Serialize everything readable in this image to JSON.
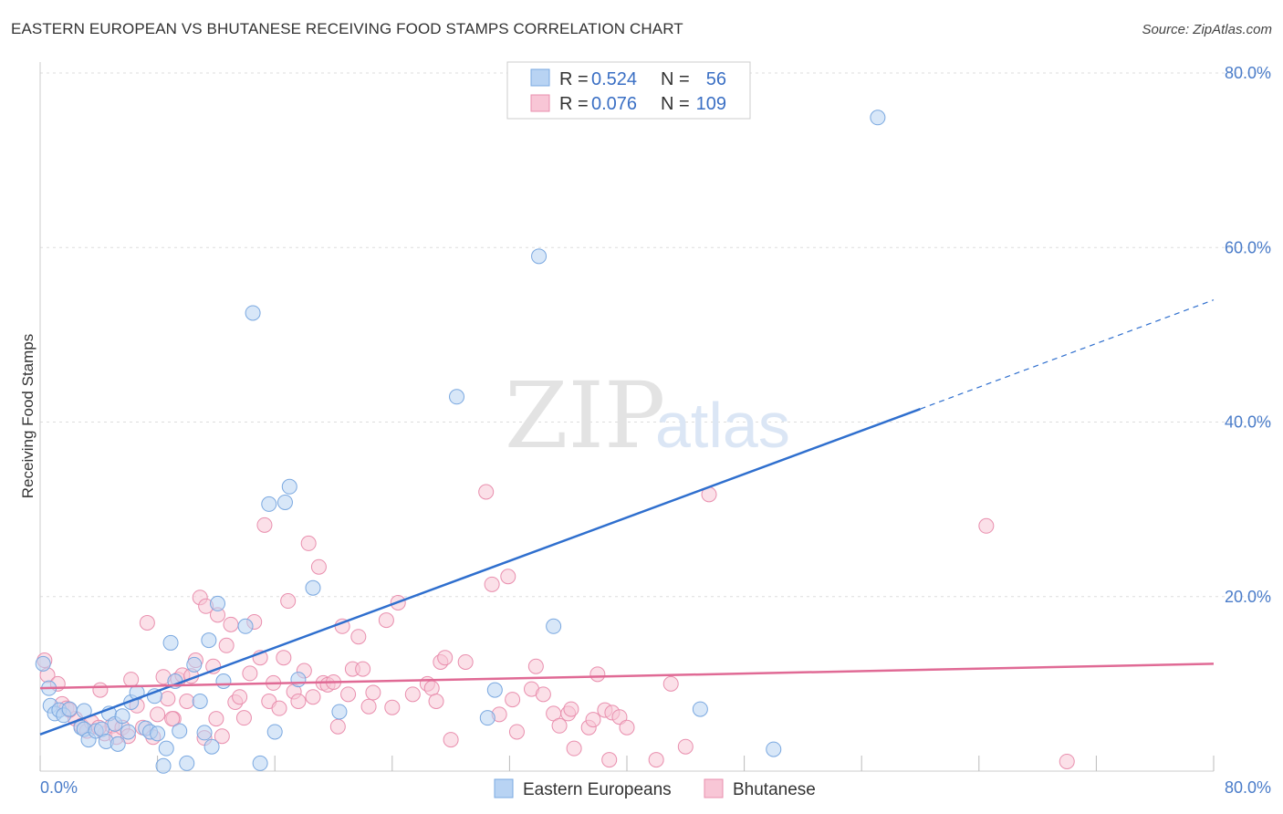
{
  "title": "EASTERN EUROPEAN VS BHUTANESE RECEIVING FOOD STAMPS CORRELATION CHART",
  "source": "Source: ZipAtlas.com",
  "watermark": {
    "zip": "ZIP",
    "atlas": "atlas"
  },
  "colors": {
    "blue_fill": "#b8d3f3",
    "blue_stroke": "#7aa8e0",
    "blue_line": "#2f6fce",
    "pink_fill": "#f8c6d6",
    "pink_stroke": "#e98fae",
    "pink_line": "#e06a95",
    "tick": "#4a7cc9",
    "grid": "#dddddd"
  },
  "legend": {
    "rows": [
      {
        "r_label": "R =",
        "r_value": "0.524",
        "n_label": "N =",
        "n_value": "56"
      },
      {
        "r_label": "R =",
        "r_value": "0.076",
        "n_label": "N =",
        "n_value": "109"
      }
    ]
  },
  "chart_data": {
    "type": "scatter",
    "title": "EASTERN EUROPEAN VS BHUTANESE RECEIVING FOOD STAMPS CORRELATION CHART",
    "xlabel": "",
    "ylabel": "Receiving Food Stamps",
    "xlim": [
      0,
      80
    ],
    "ylim": [
      0,
      80
    ],
    "x_tick_labels": [
      "0.0%",
      "80.0%"
    ],
    "y_tick_labels": [
      "20.0%",
      "40.0%",
      "60.0%",
      "80.0%"
    ],
    "y_ticks": [
      20,
      40,
      60,
      80
    ],
    "x_ticks": [
      0,
      8,
      16,
      24,
      32,
      40,
      48,
      56,
      64,
      72,
      80
    ],
    "grid": true,
    "legend_position": "top-center",
    "series": [
      {
        "name": "Eastern Europeans",
        "color": "#b8d3f3",
        "trend": {
          "x0": 0,
          "y0": 4.2,
          "x1": 60,
          "y1": 41.5,
          "dash_to_x": 80,
          "dash_to_y": 54
        },
        "points": [
          [
            0.2,
            12.3
          ],
          [
            0.6,
            9.5
          ],
          [
            0.7,
            7.5
          ],
          [
            1.0,
            6.6
          ],
          [
            1.3,
            7.0
          ],
          [
            1.6,
            6.4
          ],
          [
            2.0,
            7.1
          ],
          [
            2.8,
            5.0
          ],
          [
            3.0,
            4.8
          ],
          [
            3.3,
            3.6
          ],
          [
            3.8,
            4.6
          ],
          [
            4.2,
            4.8
          ],
          [
            4.5,
            3.4
          ],
          [
            4.7,
            6.6
          ],
          [
            5.1,
            5.4
          ],
          [
            5.3,
            3.1
          ],
          [
            5.6,
            6.3
          ],
          [
            6.2,
            7.9
          ],
          [
            6.6,
            9.0
          ],
          [
            7.2,
            4.9
          ],
          [
            7.5,
            4.5
          ],
          [
            7.8,
            8.6
          ],
          [
            8.0,
            4.3
          ],
          [
            8.4,
            0.6
          ],
          [
            8.6,
            2.6
          ],
          [
            8.9,
            14.7
          ],
          [
            9.2,
            10.3
          ],
          [
            9.5,
            4.6
          ],
          [
            10.0,
            0.9
          ],
          [
            10.5,
            12.2
          ],
          [
            10.9,
            8.0
          ],
          [
            11.2,
            4.4
          ],
          [
            11.5,
            15.0
          ],
          [
            11.7,
            2.8
          ],
          [
            12.1,
            19.2
          ],
          [
            12.5,
            10.3
          ],
          [
            14.0,
            16.6
          ],
          [
            14.5,
            52.5
          ],
          [
            15.0,
            0.9
          ],
          [
            15.6,
            30.6
          ],
          [
            16.0,
            4.5
          ],
          [
            16.7,
            30.8
          ],
          [
            17.0,
            32.6
          ],
          [
            17.6,
            10.5
          ],
          [
            18.6,
            21.0
          ],
          [
            20.4,
            6.8
          ],
          [
            28.4,
            42.9
          ],
          [
            30.5,
            6.1
          ],
          [
            31.0,
            9.3
          ],
          [
            34.0,
            59.0
          ],
          [
            35.0,
            16.6
          ],
          [
            45.0,
            7.1
          ],
          [
            50.0,
            2.5
          ],
          [
            57.1,
            74.9
          ],
          [
            6.0,
            4.5
          ],
          [
            3.0,
            6.9
          ]
        ]
      },
      {
        "name": "Bhutanese",
        "color": "#f8c6d6",
        "trend": {
          "x0": 0,
          "y0": 9.5,
          "x1": 80,
          "y1": 12.3
        },
        "points": [
          [
            0.3,
            12.7
          ],
          [
            0.5,
            11.0
          ],
          [
            1.2,
            10.0
          ],
          [
            1.5,
            7.7
          ],
          [
            1.8,
            7.2
          ],
          [
            2.4,
            6.0
          ],
          [
            2.8,
            5.2
          ],
          [
            3.2,
            4.6
          ],
          [
            3.5,
            5.6
          ],
          [
            4.1,
            9.3
          ],
          [
            4.4,
            4.3
          ],
          [
            4.9,
            5.2
          ],
          [
            5.2,
            3.9
          ],
          [
            5.6,
            5.0
          ],
          [
            6.2,
            10.5
          ],
          [
            6.6,
            7.5
          ],
          [
            7.0,
            5.0
          ],
          [
            7.3,
            17.0
          ],
          [
            7.7,
            3.9
          ],
          [
            8.0,
            6.5
          ],
          [
            8.4,
            10.8
          ],
          [
            8.7,
            8.3
          ],
          [
            9.1,
            6.0
          ],
          [
            9.4,
            10.5
          ],
          [
            9.7,
            11.0
          ],
          [
            10.0,
            8.0
          ],
          [
            10.3,
            10.9
          ],
          [
            10.6,
            12.7
          ],
          [
            10.9,
            19.9
          ],
          [
            11.2,
            3.8
          ],
          [
            11.3,
            18.9
          ],
          [
            11.8,
            12.0
          ],
          [
            12.1,
            17.9
          ],
          [
            12.4,
            4.0
          ],
          [
            12.7,
            14.4
          ],
          [
            13.0,
            16.8
          ],
          [
            13.3,
            7.9
          ],
          [
            13.6,
            8.5
          ],
          [
            13.9,
            6.1
          ],
          [
            14.3,
            11.2
          ],
          [
            14.6,
            17.1
          ],
          [
            15.0,
            13.0
          ],
          [
            15.3,
            28.2
          ],
          [
            15.6,
            8.0
          ],
          [
            15.9,
            10.1
          ],
          [
            16.3,
            7.2
          ],
          [
            16.6,
            13.0
          ],
          [
            16.9,
            19.5
          ],
          [
            17.3,
            9.1
          ],
          [
            17.6,
            8.0
          ],
          [
            18.0,
            11.5
          ],
          [
            18.3,
            26.1
          ],
          [
            18.6,
            8.5
          ],
          [
            19.0,
            23.4
          ],
          [
            19.3,
            10.1
          ],
          [
            19.6,
            9.9
          ],
          [
            20.0,
            10.2
          ],
          [
            20.3,
            5.1
          ],
          [
            20.6,
            16.6
          ],
          [
            21.0,
            8.8
          ],
          [
            21.3,
            11.7
          ],
          [
            21.7,
            15.4
          ],
          [
            22.0,
            11.7
          ],
          [
            22.4,
            7.4
          ],
          [
            22.7,
            9.0
          ],
          [
            23.6,
            17.3
          ],
          [
            24.0,
            7.3
          ],
          [
            24.4,
            19.3
          ],
          [
            25.4,
            8.8
          ],
          [
            26.4,
            10.0
          ],
          [
            26.7,
            9.5
          ],
          [
            27.0,
            8.0
          ],
          [
            27.3,
            12.5
          ],
          [
            27.6,
            13.0
          ],
          [
            28.0,
            3.6
          ],
          [
            29.0,
            12.5
          ],
          [
            30.4,
            32.0
          ],
          [
            30.8,
            21.4
          ],
          [
            31.3,
            6.5
          ],
          [
            31.9,
            22.3
          ],
          [
            32.2,
            8.2
          ],
          [
            32.5,
            4.5
          ],
          [
            33.5,
            9.4
          ],
          [
            33.8,
            12.0
          ],
          [
            34.3,
            8.8
          ],
          [
            35.0,
            6.6
          ],
          [
            35.4,
            5.2
          ],
          [
            36.0,
            6.6
          ],
          [
            36.2,
            7.1
          ],
          [
            36.4,
            2.6
          ],
          [
            37.4,
            5.0
          ],
          [
            37.7,
            5.9
          ],
          [
            38.0,
            11.1
          ],
          [
            38.5,
            7.0
          ],
          [
            38.8,
            1.3
          ],
          [
            39.0,
            6.7
          ],
          [
            39.5,
            6.2
          ],
          [
            40.0,
            5.0
          ],
          [
            42.0,
            1.3
          ],
          [
            43.0,
            10.0
          ],
          [
            44.0,
            2.8
          ],
          [
            45.6,
            31.7
          ],
          [
            64.5,
            28.1
          ],
          [
            70.0,
            1.1
          ],
          [
            2.0,
            7.0
          ],
          [
            4.0,
            5.0
          ],
          [
            6.0,
            4.0
          ],
          [
            9.0,
            6.0
          ],
          [
            12.0,
            6.0
          ]
        ]
      }
    ]
  }
}
